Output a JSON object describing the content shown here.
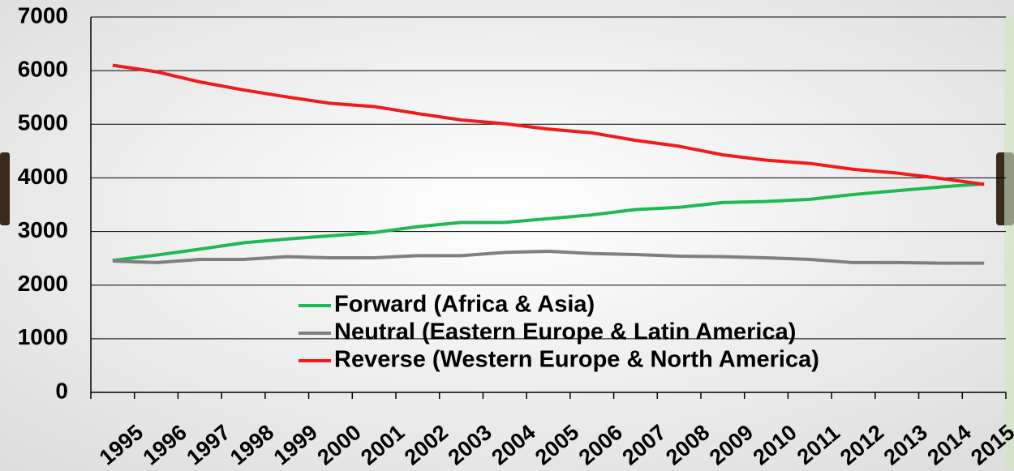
{
  "chart_data": {
    "type": "line",
    "categories": [
      "1995",
      "1996",
      "1997",
      "1998",
      "1999",
      "2000",
      "2001",
      "2002",
      "2003",
      "2004",
      "2005",
      "2006",
      "2007",
      "2008",
      "2009",
      "2010",
      "2011",
      "2012",
      "2013",
      "2014",
      "2015"
    ],
    "series": [
      {
        "name": "Forward (Africa & Asia)",
        "color": "#1db954",
        "values": [
          2460,
          2560,
          2670,
          2790,
          2860,
          2920,
          2980,
          3090,
          3170,
          3170,
          3240,
          3310,
          3410,
          3450,
          3540,
          3560,
          3600,
          3690,
          3760,
          3830,
          3890
        ]
      },
      {
        "name": "Neutral (Eastern Europe & Latin America)",
        "color": "#7f7f7f",
        "values": [
          2450,
          2420,
          2480,
          2480,
          2530,
          2510,
          2510,
          2550,
          2550,
          2610,
          2630,
          2590,
          2570,
          2540,
          2530,
          2510,
          2480,
          2420,
          2420,
          2410,
          2410
        ]
      },
      {
        "name": "Reverse (Western Europe & North America)",
        "color": "#ee1c1c",
        "values": [
          6100,
          5980,
          5790,
          5640,
          5510,
          5390,
          5330,
          5200,
          5080,
          5010,
          4910,
          4840,
          4700,
          4590,
          4430,
          4330,
          4270,
          4160,
          4090,
          3990,
          3880
        ]
      }
    ],
    "ylim": [
      0,
      7000
    ],
    "yticks": [
      0,
      1000,
      2000,
      3000,
      4000,
      5000,
      6000,
      7000
    ],
    "grid": true,
    "legend": "lower center"
  }
}
